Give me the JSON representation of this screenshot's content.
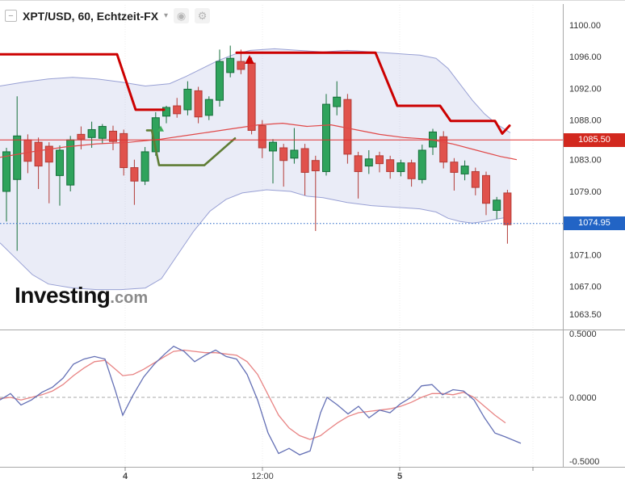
{
  "header": {
    "title": "XPT/USD, 60, Echtzeit-FX",
    "collapse_glyph": "−",
    "dropdown_glyph": "▾",
    "icons": [
      {
        "name": "target-icon",
        "glyph": "◉"
      },
      {
        "name": "settings-icon",
        "glyph": "⚙"
      }
    ]
  },
  "logo": {
    "brand": "Investing",
    "suffix": ".com"
  },
  "chart_data": {
    "type": "candlestick+oscillator",
    "title": "XPT/USD, 60, Echtzeit-FX",
    "symbol": "XPT/USD",
    "interval": "60",
    "feed": "Echtzeit-FX",
    "main": {
      "ylim": [
        1063.5,
        1100
      ],
      "price_ticks": [
        {
          "label": "1100.00",
          "value": 1100
        },
        {
          "label": "1096.00",
          "value": 1096
        },
        {
          "label": "1092.00",
          "value": 1092
        },
        {
          "label": "1088.00",
          "value": 1088
        },
        {
          "label": "1083.00",
          "value": 1083
        },
        {
          "label": "1079.00",
          "value": 1079
        },
        {
          "label": "1071.00",
          "value": 1071
        },
        {
          "label": "1067.00",
          "value": 1067
        },
        {
          "label": "1063.50",
          "value": 1063.5
        }
      ],
      "last_price_line": {
        "value": 1085.5,
        "label": "1085.50",
        "color": "#d2281e",
        "style": "solid"
      },
      "level_line": {
        "value": 1074.95,
        "label": "1074.95",
        "color": "#2264c5",
        "style": "dotted"
      },
      "colors": {
        "up": "#2fa35c",
        "up_border": "#156f3a",
        "down": "#e0524c",
        "down_border": "#b33b36",
        "trend_red": "#cc0000",
        "trend_green": "#5f7d35",
        "ma": "#e04848",
        "band": "#7b86cb",
        "osc_blue": "#6470b5",
        "osc_red": "#e88484"
      },
      "candles": [
        [
          1079.0,
          1084.5,
          1075.2,
          1084.0
        ],
        [
          1080.5,
          1091.0,
          1071.5,
          1086.0
        ],
        [
          1085.5,
          1086.2,
          1081.3,
          1082.8
        ],
        [
          1085.2,
          1085.8,
          1079.3,
          1082.2
        ],
        [
          1084.7,
          1085.2,
          1077.5,
          1082.7
        ],
        [
          1081.0,
          1084.8,
          1077.2,
          1084.2
        ],
        [
          1079.8,
          1086.0,
          1079.0,
          1085.5
        ],
        [
          1086.2,
          1087.2,
          1084.3,
          1085.6
        ],
        [
          1085.8,
          1087.8,
          1084.5,
          1086.8
        ],
        [
          1085.7,
          1087.5,
          1085.0,
          1087.2
        ],
        [
          1086.6,
          1087.3,
          1084.2,
          1085.3
        ],
        [
          1086.3,
          1086.8,
          1081.0,
          1082.0
        ],
        [
          1082.0,
          1083.0,
          1077.3,
          1080.3
        ],
        [
          1080.3,
          1084.6,
          1079.8,
          1084.0
        ],
        [
          1084.0,
          1089.0,
          1083.5,
          1088.3
        ],
        [
          1088.5,
          1089.8,
          1087.6,
          1089.6
        ],
        [
          1089.8,
          1090.8,
          1088.3,
          1088.8
        ],
        [
          1089.3,
          1092.9,
          1088.6,
          1091.9
        ],
        [
          1091.7,
          1092.2,
          1087.6,
          1088.4
        ],
        [
          1088.6,
          1091.0,
          1088.0,
          1090.6
        ],
        [
          1090.5,
          1096.9,
          1089.7,
          1095.4
        ],
        [
          1094.0,
          1097.4,
          1093.4,
          1095.8
        ],
        [
          1095.4,
          1096.9,
          1093.8,
          1094.4
        ],
        [
          1095.2,
          1095.9,
          1086.2,
          1086.7
        ],
        [
          1087.3,
          1088.0,
          1083.2,
          1084.5
        ],
        [
          1084.1,
          1085.6,
          1080.0,
          1085.2
        ],
        [
          1084.5,
          1085.0,
          1079.6,
          1082.9
        ],
        [
          1083.2,
          1087.0,
          1082.5,
          1084.2
        ],
        [
          1084.4,
          1085.0,
          1078.5,
          1081.4
        ],
        [
          1082.9,
          1083.5,
          1074.0,
          1081.6
        ],
        [
          1081.5,
          1091.3,
          1081.0,
          1090.0
        ],
        [
          1089.7,
          1092.9,
          1088.6,
          1090.9
        ],
        [
          1090.6,
          1091.3,
          1082.5,
          1083.7
        ],
        [
          1083.5,
          1084.0,
          1078.1,
          1081.5
        ],
        [
          1082.2,
          1084.2,
          1081.2,
          1083.1
        ],
        [
          1083.5,
          1084.0,
          1081.4,
          1082.5
        ],
        [
          1083.0,
          1083.5,
          1080.6,
          1081.5
        ],
        [
          1081.5,
          1083.0,
          1080.9,
          1082.6
        ],
        [
          1082.6,
          1083.0,
          1079.6,
          1080.6
        ],
        [
          1080.5,
          1084.9,
          1080.0,
          1084.2
        ],
        [
          1084.6,
          1086.9,
          1083.6,
          1086.5
        ],
        [
          1085.9,
          1086.6,
          1081.9,
          1082.7
        ],
        [
          1082.7,
          1083.2,
          1079.1,
          1081.4
        ],
        [
          1081.2,
          1082.9,
          1080.4,
          1082.2
        ],
        [
          1081.5,
          1082.0,
          1078.5,
          1079.5
        ],
        [
          1081.0,
          1081.5,
          1076.0,
          1077.5
        ],
        [
          1076.6,
          1078.3,
          1075.5,
          1077.9
        ],
        [
          1078.8,
          1079.2,
          1072.4,
          1074.8
        ]
      ],
      "bb_upper": [
        [
          0,
          1092.3
        ],
        [
          30,
          1092.8
        ],
        [
          60,
          1093.2
        ],
        [
          90,
          1093.4
        ],
        [
          120,
          1093.2
        ],
        [
          150,
          1092.8
        ],
        [
          180,
          1092.3
        ],
        [
          210,
          1092.6
        ],
        [
          230,
          1093.5
        ],
        [
          250,
          1094.5
        ],
        [
          270,
          1095.5
        ],
        [
          290,
          1096.3
        ],
        [
          310,
          1096.8
        ],
        [
          340,
          1097.0
        ],
        [
          370,
          1096.8
        ],
        [
          400,
          1096.6
        ],
        [
          430,
          1096.8
        ],
        [
          460,
          1096.6
        ],
        [
          490,
          1096.4
        ],
        [
          520,
          1096.2
        ],
        [
          540,
          1095.8
        ],
        [
          555,
          1094.5
        ],
        [
          570,
          1092.5
        ],
        [
          585,
          1090.5
        ],
        [
          600,
          1088.8
        ],
        [
          615,
          1087.5
        ],
        [
          632,
          1086.4
        ]
      ],
      "bb_lower": [
        [
          0,
          1072.5
        ],
        [
          20,
          1070.5
        ],
        [
          40,
          1068.5
        ],
        [
          60,
          1067.3
        ],
        [
          90,
          1066.8
        ],
        [
          120,
          1066.6
        ],
        [
          150,
          1066.6
        ],
        [
          180,
          1066.8
        ],
        [
          200,
          1068.0
        ],
        [
          220,
          1071.0
        ],
        [
          240,
          1074.0
        ],
        [
          260,
          1076.5
        ],
        [
          280,
          1078.0
        ],
        [
          300,
          1078.8
        ],
        [
          330,
          1079.2
        ],
        [
          360,
          1079.0
        ],
        [
          380,
          1078.4
        ],
        [
          400,
          1078.2
        ],
        [
          430,
          1077.6
        ],
        [
          460,
          1077.2
        ],
        [
          490,
          1077.0
        ],
        [
          520,
          1076.8
        ],
        [
          540,
          1076.4
        ],
        [
          555,
          1075.6
        ],
        [
          570,
          1075.2
        ],
        [
          585,
          1075.0
        ],
        [
          600,
          1075.2
        ],
        [
          615,
          1075.5
        ],
        [
          632,
          1075.8
        ]
      ],
      "ma_fast": [
        [
          0,
          1083.3
        ],
        [
          40,
          1084.0
        ],
        [
          80,
          1084.6
        ],
        [
          120,
          1085.0
        ],
        [
          160,
          1085.2
        ],
        [
          200,
          1085.6
        ],
        [
          240,
          1086.2
        ],
        [
          280,
          1086.8
        ],
        [
          320,
          1087.4
        ],
        [
          350,
          1087.6
        ],
        [
          380,
          1087.2
        ],
        [
          410,
          1087.4
        ],
        [
          440,
          1086.8
        ],
        [
          470,
          1086.2
        ],
        [
          500,
          1085.8
        ],
        [
          530,
          1085.6
        ],
        [
          560,
          1085.0
        ],
        [
          590,
          1084.2
        ],
        [
          620,
          1083.4
        ],
        [
          640,
          1083.0
        ]
      ],
      "hilo_red_segments": [
        [
          [
            0,
            1096.3
          ],
          [
            145,
            1096.3
          ],
          [
            168,
            1089.3
          ],
          [
            203,
            1089.3
          ]
        ],
        [
          [
            293,
            1096.5
          ],
          [
            465,
            1096.5
          ],
          [
            492,
            1089.8
          ],
          [
            545,
            1089.8
          ],
          [
            558,
            1087.9
          ],
          [
            613,
            1087.9
          ],
          [
            622,
            1086.3
          ],
          [
            631,
            1087.3
          ]
        ]
      ],
      "hilo_green_segments": [
        [
          [
            182,
            1086.7
          ],
          [
            188,
            1086.7
          ],
          [
            197,
            1082.3
          ],
          [
            253,
            1082.3
          ],
          [
            291,
            1085.7
          ]
        ]
      ],
      "arrows": [
        {
          "x": 309,
          "price": 1095.6,
          "dir": "up",
          "color": "#cc0000",
          "size": 6
        },
        {
          "x": 199,
          "price": 1086.9,
          "dir": "up",
          "color": "#3fae5c",
          "size": 4
        }
      ]
    },
    "osc": {
      "ylim": [
        -0.5,
        0.5
      ],
      "ticks": [
        {
          "label": "0.5000",
          "value": 0.5
        },
        {
          "label": "0.0000",
          "value": 0.0
        },
        {
          "label": "-0.5000",
          "value": -0.5
        }
      ],
      "blue": [
        [
          0,
          -0.02
        ],
        [
          13,
          0.03
        ],
        [
          26,
          -0.06
        ],
        [
          39,
          -0.02
        ],
        [
          52,
          0.04
        ],
        [
          65,
          0.08
        ],
        [
          78,
          0.15
        ],
        [
          91,
          0.26
        ],
        [
          104,
          0.3
        ],
        [
          117,
          0.32
        ],
        [
          130,
          0.3
        ],
        [
          143,
          0.05
        ],
        [
          152,
          -0.14
        ],
        [
          165,
          0.02
        ],
        [
          178,
          0.16
        ],
        [
          191,
          0.26
        ],
        [
          204,
          0.34
        ],
        [
          215,
          0.4
        ],
        [
          228,
          0.36
        ],
        [
          241,
          0.28
        ],
        [
          254,
          0.33
        ],
        [
          267,
          0.37
        ],
        [
          280,
          0.32
        ],
        [
          293,
          0.3
        ],
        [
          306,
          0.18
        ],
        [
          319,
          -0.02
        ],
        [
          332,
          -0.28
        ],
        [
          345,
          -0.44
        ],
        [
          358,
          -0.4
        ],
        [
          371,
          -0.45
        ],
        [
          384,
          -0.42
        ],
        [
          397,
          -0.12
        ],
        [
          405,
          0.0
        ],
        [
          418,
          -0.06
        ],
        [
          431,
          -0.13
        ],
        [
          444,
          -0.07
        ],
        [
          457,
          -0.16
        ],
        [
          470,
          -0.1
        ],
        [
          483,
          -0.12
        ],
        [
          496,
          -0.05
        ],
        [
          509,
          0.0
        ],
        [
          522,
          0.09
        ],
        [
          535,
          0.1
        ],
        [
          548,
          0.02
        ],
        [
          561,
          0.06
        ],
        [
          574,
          0.05
        ],
        [
          587,
          -0.02
        ],
        [
          600,
          -0.16
        ],
        [
          613,
          -0.28
        ],
        [
          626,
          -0.31
        ],
        [
          645,
          -0.36
        ]
      ],
      "red": [
        [
          0,
          -0.01
        ],
        [
          13,
          0.0
        ],
        [
          26,
          -0.02
        ],
        [
          39,
          0.0
        ],
        [
          52,
          0.02
        ],
        [
          65,
          0.05
        ],
        [
          78,
          0.1
        ],
        [
          91,
          0.17
        ],
        [
          104,
          0.23
        ],
        [
          117,
          0.28
        ],
        [
          130,
          0.29
        ],
        [
          143,
          0.22
        ],
        [
          152,
          0.17
        ],
        [
          165,
          0.18
        ],
        [
          178,
          0.22
        ],
        [
          191,
          0.27
        ],
        [
          204,
          0.32
        ],
        [
          215,
          0.36
        ],
        [
          228,
          0.37
        ],
        [
          241,
          0.36
        ],
        [
          254,
          0.35
        ],
        [
          267,
          0.35
        ],
        [
          280,
          0.34
        ],
        [
          293,
          0.33
        ],
        [
          306,
          0.28
        ],
        [
          319,
          0.18
        ],
        [
          332,
          0.02
        ],
        [
          345,
          -0.14
        ],
        [
          358,
          -0.24
        ],
        [
          371,
          -0.3
        ],
        [
          384,
          -0.33
        ],
        [
          397,
          -0.3
        ],
        [
          405,
          -0.26
        ],
        [
          418,
          -0.2
        ],
        [
          431,
          -0.15
        ],
        [
          444,
          -0.12
        ],
        [
          457,
          -0.11
        ],
        [
          470,
          -0.1
        ],
        [
          483,
          -0.09
        ],
        [
          496,
          -0.07
        ],
        [
          509,
          -0.04
        ],
        [
          522,
          0.0
        ],
        [
          535,
          0.03
        ],
        [
          548,
          0.03
        ],
        [
          561,
          0.02
        ],
        [
          574,
          0.04
        ],
        [
          587,
          0.0
        ],
        [
          600,
          -0.07
        ],
        [
          613,
          -0.14
        ],
        [
          626,
          -0.2
        ]
      ]
    },
    "time_axis": {
      "ticks": [
        {
          "label": "4",
          "x": 155,
          "bold": true
        },
        {
          "label": "12:00",
          "x": 325,
          "bold": false
        },
        {
          "label": "5",
          "x": 495,
          "bold": true
        },
        {
          "label": "",
          "x": 660,
          "bold": false
        }
      ]
    }
  }
}
